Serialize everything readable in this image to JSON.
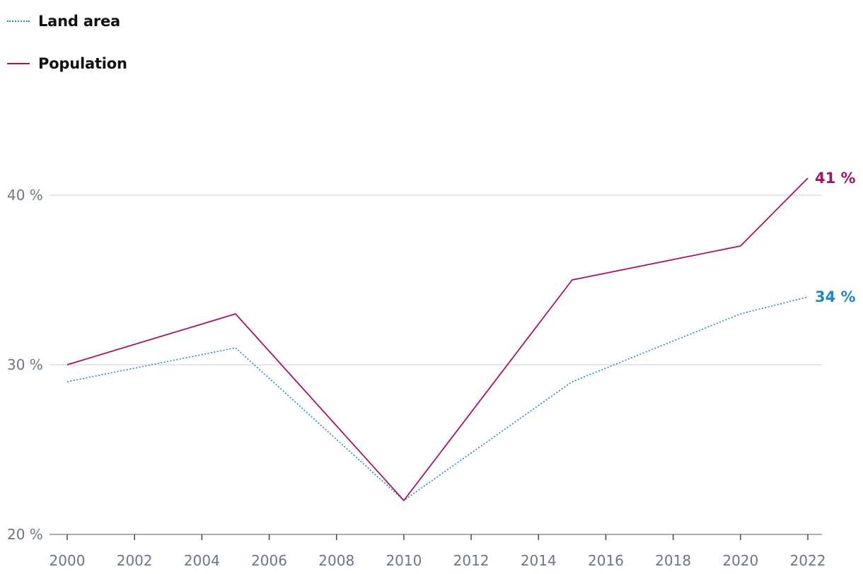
{
  "chart_data": {
    "type": "line",
    "title": "",
    "xlabel": "",
    "ylabel": "",
    "x_ticks": [
      "2000",
      "2002",
      "2004",
      "2006",
      "2008",
      "2010",
      "2012",
      "2014",
      "2016",
      "2018",
      "2020",
      "2022"
    ],
    "y_ticks": [
      "20 %",
      "30 %",
      "40 %"
    ],
    "ylim": [
      20,
      45
    ],
    "xlim": [
      2000,
      2022
    ],
    "grid": true,
    "legend_position": "top-left",
    "series": [
      {
        "name": "Land area",
        "color": "#1e88c8",
        "style": "dotted",
        "x": [
          2000,
          2005,
          2010,
          2015,
          2020,
          2022
        ],
        "values": [
          29,
          31,
          22,
          29,
          33,
          34
        ],
        "end_label": "34 %"
      },
      {
        "name": "Population",
        "color": "#a3136b",
        "style": "solid",
        "x": [
          2000,
          2005,
          2010,
          2015,
          2020,
          2022
        ],
        "values": [
          30,
          33,
          22,
          35,
          37,
          41
        ],
        "end_label": "41 %"
      }
    ]
  }
}
